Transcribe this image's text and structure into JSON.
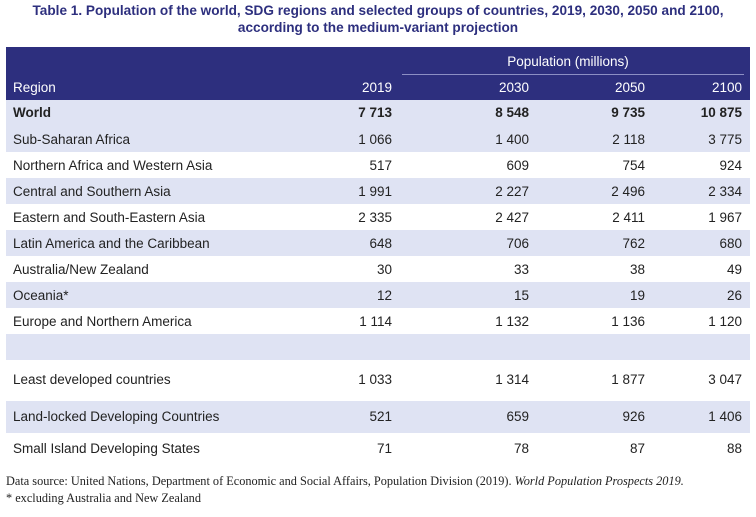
{
  "title": {
    "line1": "Table 1. Population of the world, SDG regions and selected groups of countries, 2019, 2030, 2050 and 2100,",
    "line2": "according to the medium-variant projection"
  },
  "table": {
    "group_header": "Population (millions)",
    "region_header": "Region",
    "years": [
      "2019",
      "2030",
      "2050",
      "2100"
    ],
    "rows": [
      {
        "region": "World",
        "values": [
          "7 713",
          "8 548",
          "9 735",
          "10 875"
        ],
        "bold": true,
        "shaded": true
      },
      {
        "region": "Sub-Saharan Africa",
        "values": [
          "1 066",
          "1 400",
          "2 118",
          "3 775"
        ],
        "shaded": true
      },
      {
        "region": "Northern Africa and Western Asia",
        "values": [
          "517",
          "609",
          "754",
          "924"
        ],
        "shaded": false
      },
      {
        "region": "Central and Southern Asia",
        "values": [
          "1 991",
          "2 227",
          "2 496",
          "2 334"
        ],
        "shaded": true
      },
      {
        "region": "Eastern and South-Eastern Asia",
        "values": [
          "2 335",
          "2 427",
          "2 411",
          "1 967"
        ],
        "shaded": false
      },
      {
        "region": "Latin America and the Caribbean",
        "values": [
          "648",
          "706",
          "762",
          "680"
        ],
        "shaded": true
      },
      {
        "region": "Australia/New Zealand",
        "values": [
          "30",
          "33",
          "38",
          "49"
        ],
        "shaded": false
      },
      {
        "region": "Oceania*",
        "values": [
          "12",
          "15",
          "19",
          "26"
        ],
        "shaded": true
      },
      {
        "region": "Europe and Northern America",
        "values": [
          "1 114",
          "1 132",
          "1 136",
          "1 120"
        ],
        "shaded": false
      },
      {
        "region": "",
        "values": [
          "",
          "",
          "",
          ""
        ],
        "shaded": true
      },
      {
        "region": "Least developed countries",
        "values": [
          "1 033",
          "1 314",
          "1 877",
          "3 047"
        ],
        "shaded": false
      },
      {
        "region": "Land-locked Developing Countries",
        "values": [
          "521",
          "659",
          "926",
          "1 406"
        ],
        "shaded": true
      },
      {
        "region": "Small Island Developing States",
        "values": [
          "71",
          "78",
          "87",
          "88"
        ],
        "shaded": false
      }
    ]
  },
  "footnote": {
    "source_prefix": "Data source: United Nations, Department of Economic and Social Affairs, Population Division (2019). ",
    "source_title": "World Population Prospects 2019.",
    "note": "* excluding Australia and New Zealand"
  }
}
